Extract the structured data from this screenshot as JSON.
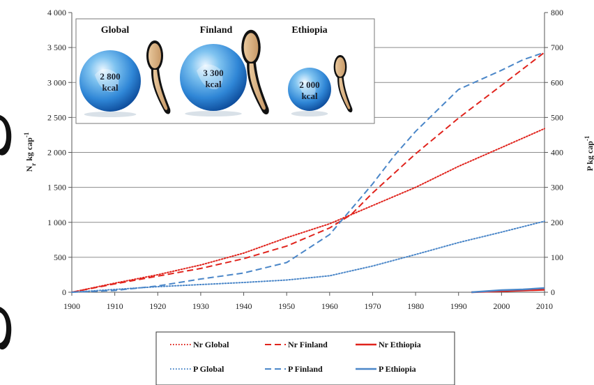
{
  "chart_data": {
    "type": "line",
    "x_axis": {
      "min": 1900,
      "max": 2010,
      "ticks": [
        1900,
        1910,
        1920,
        1930,
        1940,
        1950,
        1960,
        1970,
        1980,
        1990,
        2000,
        2010
      ]
    },
    "y_left": {
      "label_main": "N",
      "label_sub": "r",
      "label_rest": " kg cap",
      "label_sup": "-1",
      "min": 0,
      "max": 4000,
      "ticks": [
        0,
        500,
        1000,
        1500,
        2000,
        2500,
        3000,
        3500,
        4000
      ],
      "tick_labels": [
        "0",
        "500",
        "1 000",
        "1 500",
        "2 000",
        "2 500",
        "3 000",
        "3 500",
        "4 000"
      ]
    },
    "y_right": {
      "label_main": "P kg cap",
      "label_sup": "-1",
      "min": 0,
      "max": 800,
      "ticks": [
        0,
        100,
        200,
        300,
        400,
        500,
        600,
        700,
        800
      ],
      "tick_labels": [
        "0",
        "100",
        "200",
        "300",
        "400",
        "500",
        "600",
        "700",
        "800"
      ]
    },
    "series": [
      {
        "name": "Nr Global",
        "axis": "left",
        "color": "#e0231c",
        "style": "dotted",
        "points": [
          [
            1900,
            0
          ],
          [
            1910,
            130
          ],
          [
            1920,
            250
          ],
          [
            1930,
            390
          ],
          [
            1940,
            560
          ],
          [
            1950,
            780
          ],
          [
            1960,
            980
          ],
          [
            1970,
            1240
          ],
          [
            1980,
            1500
          ],
          [
            1990,
            1800
          ],
          [
            2000,
            2070
          ],
          [
            2010,
            2340
          ]
        ]
      },
      {
        "name": "Nr Finland",
        "axis": "left",
        "color": "#e0231c",
        "style": "dashed",
        "points": [
          [
            1900,
            0
          ],
          [
            1910,
            120
          ],
          [
            1920,
            230
          ],
          [
            1930,
            340
          ],
          [
            1940,
            480
          ],
          [
            1950,
            660
          ],
          [
            1960,
            920
          ],
          [
            1965,
            1110
          ],
          [
            1970,
            1420
          ],
          [
            1980,
            1980
          ],
          [
            1990,
            2490
          ],
          [
            2000,
            2960
          ],
          [
            2010,
            3430
          ]
        ]
      },
      {
        "name": "Nr Ethiopia",
        "axis": "left",
        "color": "#e0231c",
        "style": "solid",
        "points": [
          [
            1993,
            0
          ],
          [
            2000,
            15
          ],
          [
            2005,
            25
          ],
          [
            2010,
            35
          ]
        ]
      },
      {
        "name": "P Global",
        "axis": "right",
        "color": "#4a86c8",
        "style": "dotted",
        "points": [
          [
            1900,
            0
          ],
          [
            1910,
            8
          ],
          [
            1920,
            16
          ],
          [
            1930,
            22
          ],
          [
            1940,
            28
          ],
          [
            1950,
            35
          ],
          [
            1960,
            47
          ],
          [
            1970,
            75
          ],
          [
            1980,
            108
          ],
          [
            1990,
            142
          ],
          [
            2000,
            172
          ],
          [
            2010,
            203
          ]
        ]
      },
      {
        "name": "P Finland",
        "axis": "right",
        "color": "#4a86c8",
        "style": "dashed",
        "points": [
          [
            1900,
            0
          ],
          [
            1910,
            5
          ],
          [
            1920,
            18
          ],
          [
            1930,
            38
          ],
          [
            1940,
            55
          ],
          [
            1950,
            85
          ],
          [
            1960,
            165
          ],
          [
            1970,
            310
          ],
          [
            1975,
            390
          ],
          [
            1980,
            460
          ],
          [
            1990,
            580
          ],
          [
            2000,
            635
          ],
          [
            2005,
            665
          ],
          [
            2010,
            686
          ]
        ]
      },
      {
        "name": "P Ethiopia",
        "axis": "right",
        "color": "#4a86c8",
        "style": "solid",
        "points": [
          [
            1993,
            0
          ],
          [
            2000,
            6
          ],
          [
            2005,
            8
          ],
          [
            2010,
            12
          ]
        ]
      }
    ],
    "legend_placement": "bottom",
    "grid": "horizontal",
    "inset": {
      "items": [
        {
          "label": "Global",
          "kcal_value": "2 800",
          "kcal_unit": "kcal"
        },
        {
          "label": "Finland",
          "kcal_value": "3 300",
          "kcal_unit": "kcal"
        },
        {
          "label": "Ethiopia",
          "kcal_value": "2 000",
          "kcal_unit": "kcal"
        }
      ]
    }
  }
}
